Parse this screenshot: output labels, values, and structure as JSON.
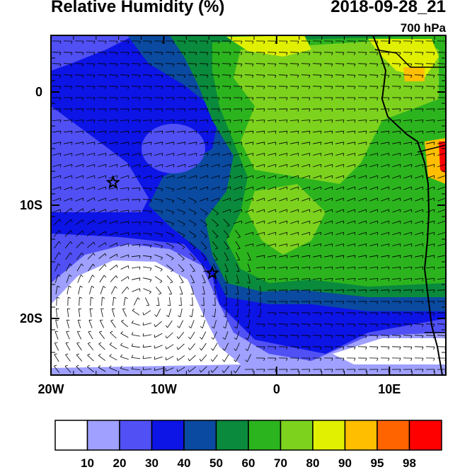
{
  "header": {
    "title_left": "Relative Humidity (%)",
    "title_right": "2018-09-28_21",
    "level": "700 hPa"
  },
  "map": {
    "lon_range": [
      -20,
      15
    ],
    "lat_range": [
      -25,
      5
    ],
    "x_ticks": [
      {
        "value": -20,
        "label": "20W"
      },
      {
        "value": -10,
        "label": "10W"
      },
      {
        "value": 0,
        "label": "0"
      },
      {
        "value": 10,
        "label": "10E"
      }
    ],
    "y_ticks": [
      {
        "value": 0,
        "label": "0"
      },
      {
        "value": -10,
        "label": "10S"
      },
      {
        "value": -20,
        "label": "20S"
      }
    ],
    "markers": [
      {
        "name": "star",
        "lon": -14.5,
        "lat": -8
      },
      {
        "name": "star",
        "lon": -5.7,
        "lat": -16
      }
    ]
  },
  "colorbar": {
    "labels": [
      "10",
      "20",
      "30",
      "40",
      "50",
      "60",
      "70",
      "80",
      "90",
      "95",
      "98"
    ],
    "colors": [
      "#ffffff",
      "#9fa0ff",
      "#5050f5",
      "#0d14e6",
      "#0a4aa0",
      "#0a8a3c",
      "#2cb41e",
      "#7dd21e",
      "#e0f000",
      "#ffbe00",
      "#ff6400",
      "#ff0000"
    ]
  }
}
